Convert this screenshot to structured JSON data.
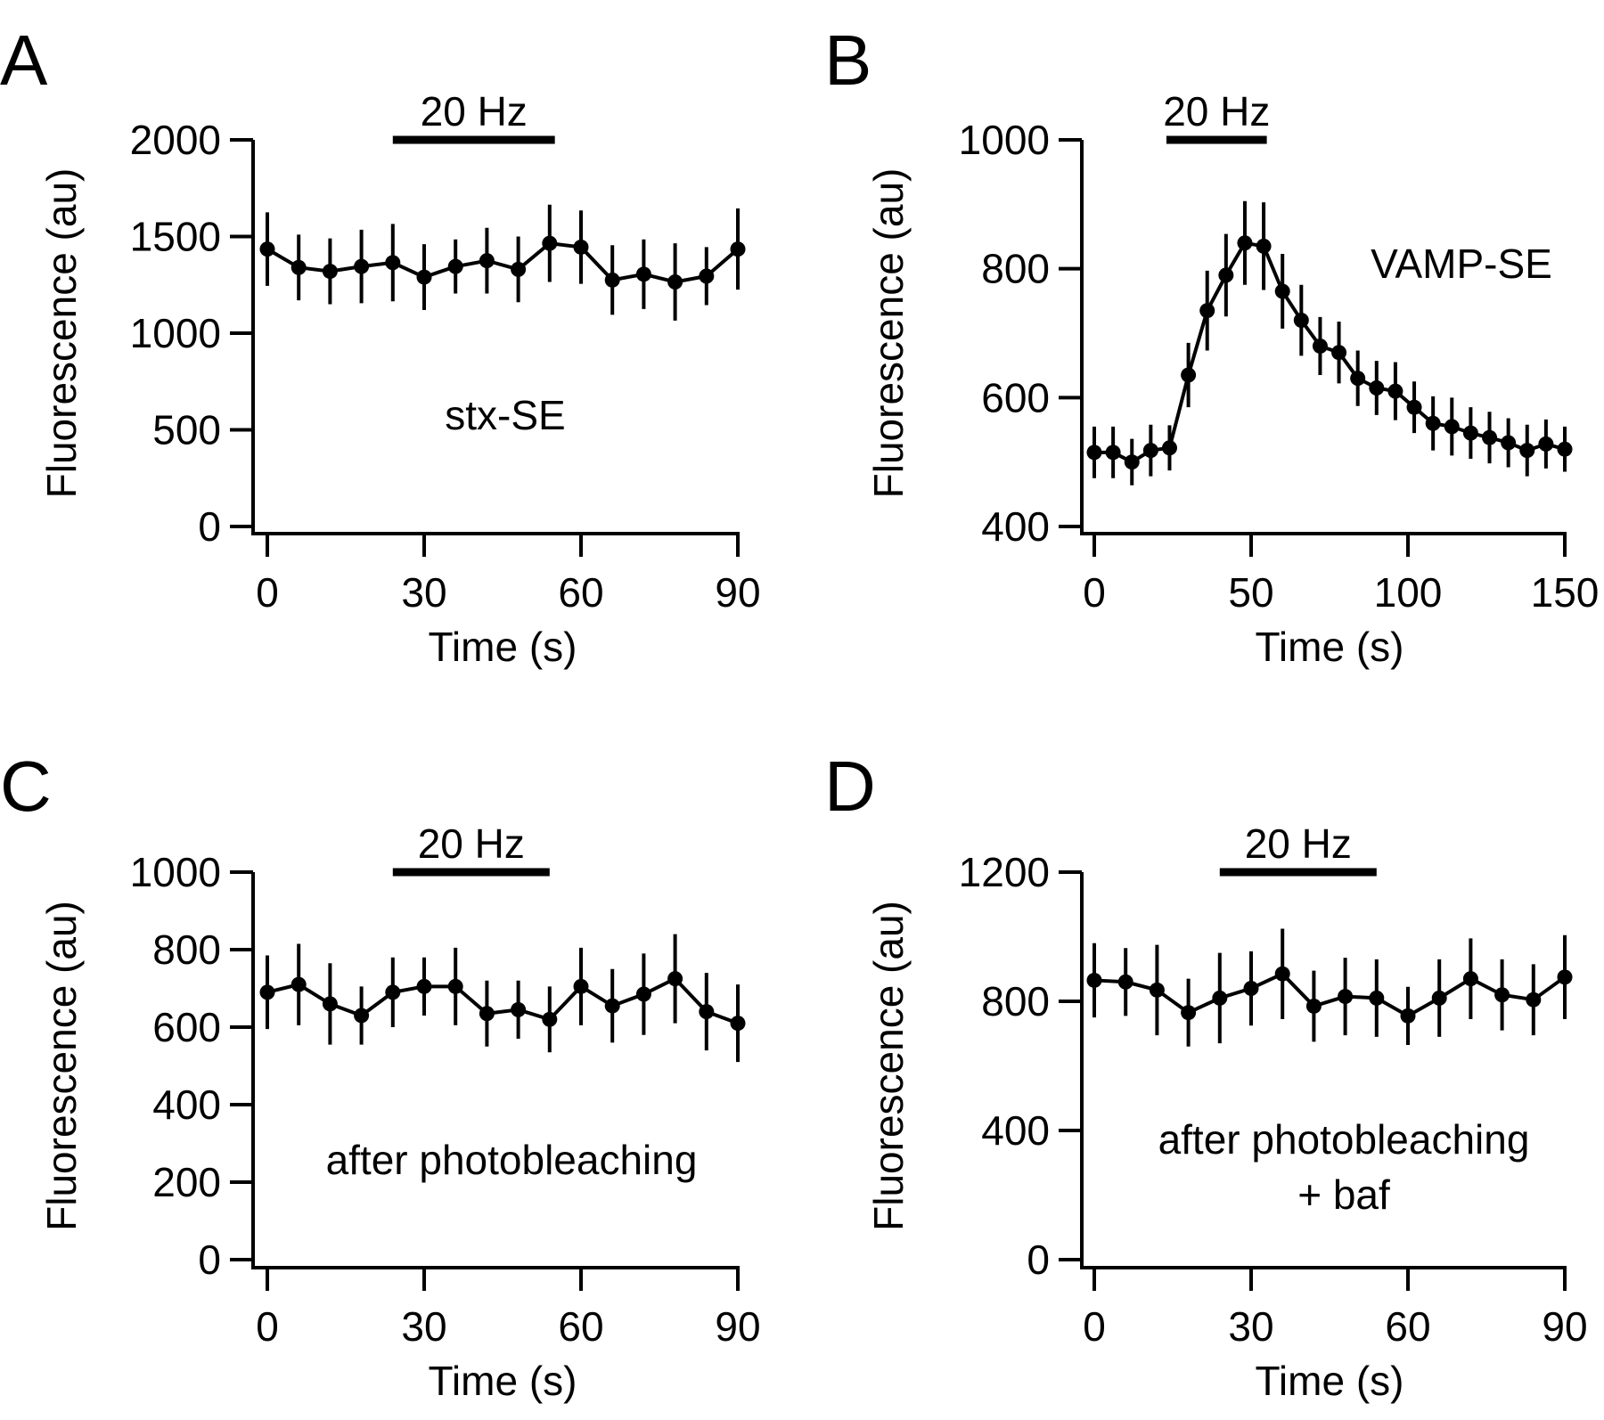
{
  "chart_data": [
    {
      "panel": "A",
      "type": "line",
      "xlabel": "Time (s)",
      "ylabel": "Fluorescence (au)",
      "xlim": [
        0,
        90
      ],
      "ylim": [
        0,
        2000
      ],
      "xticks": [
        0,
        30,
        60,
        90
      ],
      "yticks": [
        0,
        500,
        1000,
        1500,
        2000
      ],
      "stimulus": {
        "label": "20 Hz",
        "start": 24,
        "end": 55
      },
      "annotation": [
        "stx-SE"
      ],
      "x": [
        0,
        6,
        12,
        18,
        24,
        30,
        36,
        42,
        48,
        54,
        60,
        66,
        72,
        78,
        84,
        90
      ],
      "y": [
        1435,
        1340,
        1320,
        1345,
        1365,
        1290,
        1345,
        1375,
        1330,
        1465,
        1445,
        1275,
        1305,
        1265,
        1295,
        1435
      ],
      "err": [
        190,
        170,
        170,
        190,
        200,
        170,
        140,
        170,
        170,
        200,
        190,
        180,
        180,
        200,
        150,
        210
      ]
    },
    {
      "panel": "B",
      "type": "line",
      "xlabel": "Time (s)",
      "ylabel": "Fluorescence (au)",
      "xlim": [
        0,
        150
      ],
      "ylim": [
        400,
        1000
      ],
      "xticks": [
        0,
        50,
        100,
        150
      ],
      "yticks": [
        400,
        600,
        800,
        1000
      ],
      "stimulus": {
        "label": "20 Hz",
        "start": 23,
        "end": 55
      },
      "annotation": [
        "VAMP-SE"
      ],
      "x": [
        0,
        6,
        12,
        18,
        24,
        30,
        36,
        42,
        48,
        54,
        60,
        66,
        72,
        78,
        84,
        90,
        96,
        102,
        108,
        114,
        120,
        126,
        132,
        138,
        144,
        150
      ],
      "y": [
        515,
        515,
        500,
        518,
        522,
        635,
        735,
        790,
        840,
        835,
        765,
        720,
        680,
        670,
        630,
        615,
        610,
        585,
        560,
        555,
        545,
        538,
        530,
        518,
        528,
        520
      ],
      "err": [
        40,
        40,
        36,
        40,
        35,
        50,
        62,
        64,
        65,
        68,
        58,
        55,
        45,
        48,
        43,
        42,
        45,
        40,
        42,
        45,
        40,
        40,
        38,
        40,
        38,
        35
      ]
    },
    {
      "panel": "C",
      "type": "line",
      "xlabel": "Time (s)",
      "ylabel": "Fluorescence (au)",
      "xlim": [
        0,
        90
      ],
      "ylim": [
        0,
        1000
      ],
      "xticks": [
        0,
        30,
        60,
        90
      ],
      "yticks": [
        0,
        200,
        400,
        600,
        800,
        1000
      ],
      "stimulus": {
        "label": "20 Hz",
        "start": 24,
        "end": 54
      },
      "annotation": [
        "after photobleaching"
      ],
      "x": [
        0,
        6,
        12,
        18,
        24,
        30,
        36,
        42,
        48,
        54,
        60,
        66,
        72,
        78,
        84,
        90
      ],
      "y": [
        690,
        710,
        660,
        630,
        690,
        705,
        705,
        635,
        645,
        620,
        705,
        655,
        685,
        725,
        640,
        610
      ],
      "err": [
        95,
        105,
        105,
        75,
        90,
        75,
        100,
        85,
        75,
        85,
        100,
        95,
        105,
        115,
        100,
        100
      ]
    },
    {
      "panel": "D",
      "type": "line",
      "xlabel": "Time (s)",
      "ylabel": "Fluorescence (au)",
      "xlim": [
        0,
        90
      ],
      "ylim": [
        0,
        1200
      ],
      "xticks": [
        0,
        30,
        60,
        90
      ],
      "yticks": [
        0,
        400,
        800,
        1200
      ],
      "stimulus": {
        "label": "20 Hz",
        "start": 24,
        "end": 54
      },
      "annotation": [
        "after photobleaching",
        "+ baf"
      ],
      "x": [
        0,
        6,
        12,
        18,
        24,
        30,
        36,
        42,
        48,
        54,
        60,
        66,
        72,
        78,
        84,
        90
      ],
      "y": [
        865,
        860,
        835,
        765,
        810,
        840,
        885,
        785,
        815,
        810,
        755,
        810,
        870,
        820,
        805,
        875
      ],
      "err": [
        115,
        105,
        140,
        105,
        140,
        115,
        140,
        110,
        120,
        120,
        90,
        120,
        125,
        110,
        110,
        130
      ]
    }
  ]
}
